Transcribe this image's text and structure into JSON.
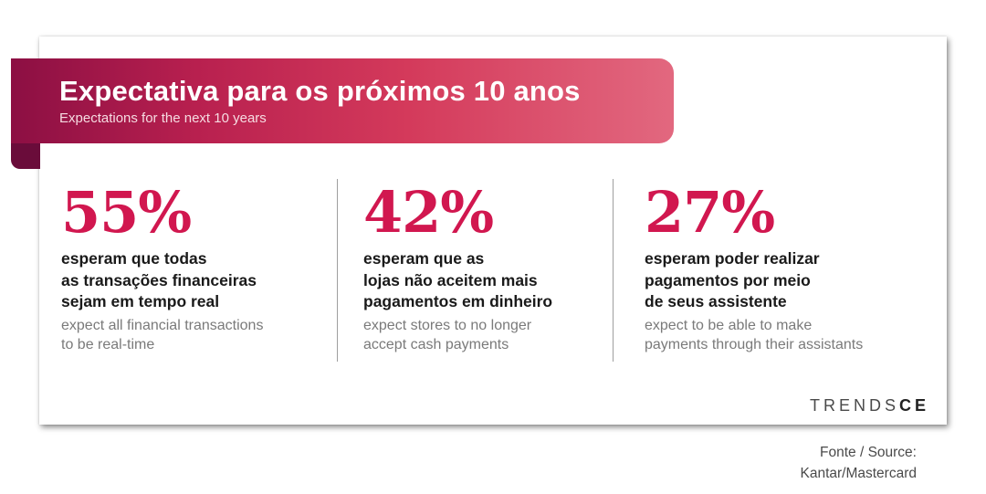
{
  "banner": {
    "title": "Expectativa para os próximos 10 anos",
    "subtitle": "Expectations for the next 10 years"
  },
  "stats": [
    {
      "percent": "55%",
      "pt_lines": [
        "esperam que todas",
        "as transações financeiras",
        "sejam em tempo real"
      ],
      "en_lines": [
        "expect all financial transactions",
        "to be real-time"
      ]
    },
    {
      "percent": "42%",
      "pt_lines": [
        "esperam que as",
        "lojas não aceitem mais",
        "pagamentos em dinheiro"
      ],
      "en_lines": [
        "expect stores to no longer",
        "accept cash payments"
      ]
    },
    {
      "percent": "27%",
      "pt_lines": [
        "esperam poder realizar",
        "pagamentos por meio",
        "de seus assistente"
      ],
      "en_lines": [
        "expect to be able to make",
        "payments through their assistants"
      ]
    }
  ],
  "logo": {
    "part1": "TRENDS",
    "part2": "CE"
  },
  "source": {
    "line1": "Fonte / Source:",
    "line2": "Kantar/Mastercard"
  },
  "colors": {
    "accent": "#d1174f",
    "banner_start": "#8c0f43",
    "banner_end": "#e2687f",
    "text_dark": "#1a1a1a",
    "text_muted": "#7a7a7a"
  }
}
